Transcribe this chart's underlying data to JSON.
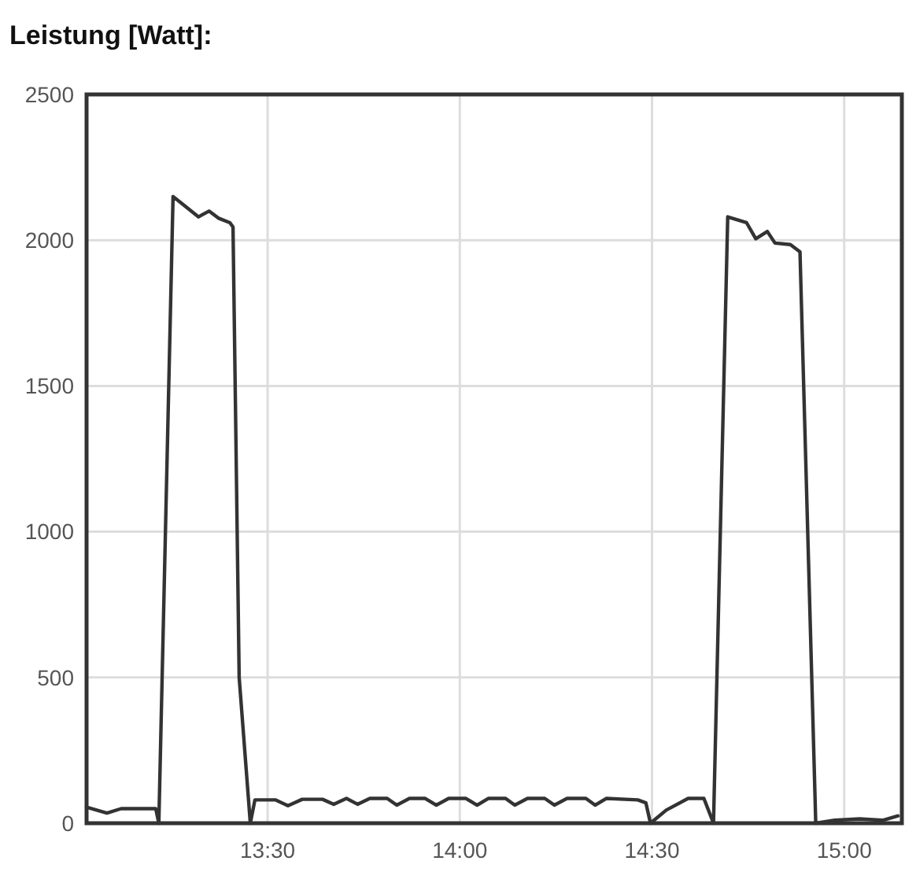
{
  "chart_data": {
    "type": "line",
    "title": "Leistung [Watt]:",
    "x": [
      13.029,
      13.082,
      13.119,
      13.209,
      13.217,
      13.254,
      13.32,
      13.348,
      13.373,
      13.402,
      13.41,
      13.426,
      13.455,
      13.467,
      13.52,
      13.553,
      13.59,
      13.643,
      13.672,
      13.705,
      13.734,
      13.766,
      13.811,
      13.836,
      13.869,
      13.91,
      13.939,
      13.971,
      14.016,
      14.045,
      14.074,
      14.119,
      14.143,
      14.176,
      14.221,
      14.246,
      14.279,
      14.328,
      14.352,
      14.381,
      14.463,
      14.484,
      14.496,
      14.537,
      14.594,
      14.635,
      14.66,
      14.697,
      14.746,
      14.77,
      14.8,
      14.82,
      14.86,
      14.885,
      14.926,
      14.975,
      15.04,
      15.1,
      15.14
    ],
    "series": [
      {
        "color": "#333333",
        "values": [
          55,
          35,
          50,
          50,
          0,
          2150,
          2080,
          2100,
          2075,
          2060,
          2045,
          500,
          0,
          80,
          80,
          60,
          82,
          82,
          65,
          85,
          65,
          85,
          85,
          62,
          85,
          85,
          62,
          85,
          85,
          62,
          85,
          85,
          62,
          85,
          85,
          62,
          85,
          85,
          62,
          85,
          80,
          70,
          0,
          45,
          85,
          85,
          0,
          2080,
          2060,
          2005,
          2030,
          1990,
          1985,
          1960,
          0,
          10,
          15,
          10,
          25
        ]
      }
    ],
    "xlim": [
      13.029,
      15.15
    ],
    "xticks": [
      {
        "value": 13.5,
        "label": "13:30"
      },
      {
        "value": 14,
        "label": "14:00"
      },
      {
        "value": 14.5,
        "label": "14:30"
      },
      {
        "value": 15,
        "label": "15:00"
      }
    ],
    "ylim": [
      0,
      2500
    ],
    "yticks": [
      0,
      500,
      1000,
      1500,
      2000,
      2500
    ],
    "grid": true,
    "marker": "none",
    "line_style": "solid"
  }
}
